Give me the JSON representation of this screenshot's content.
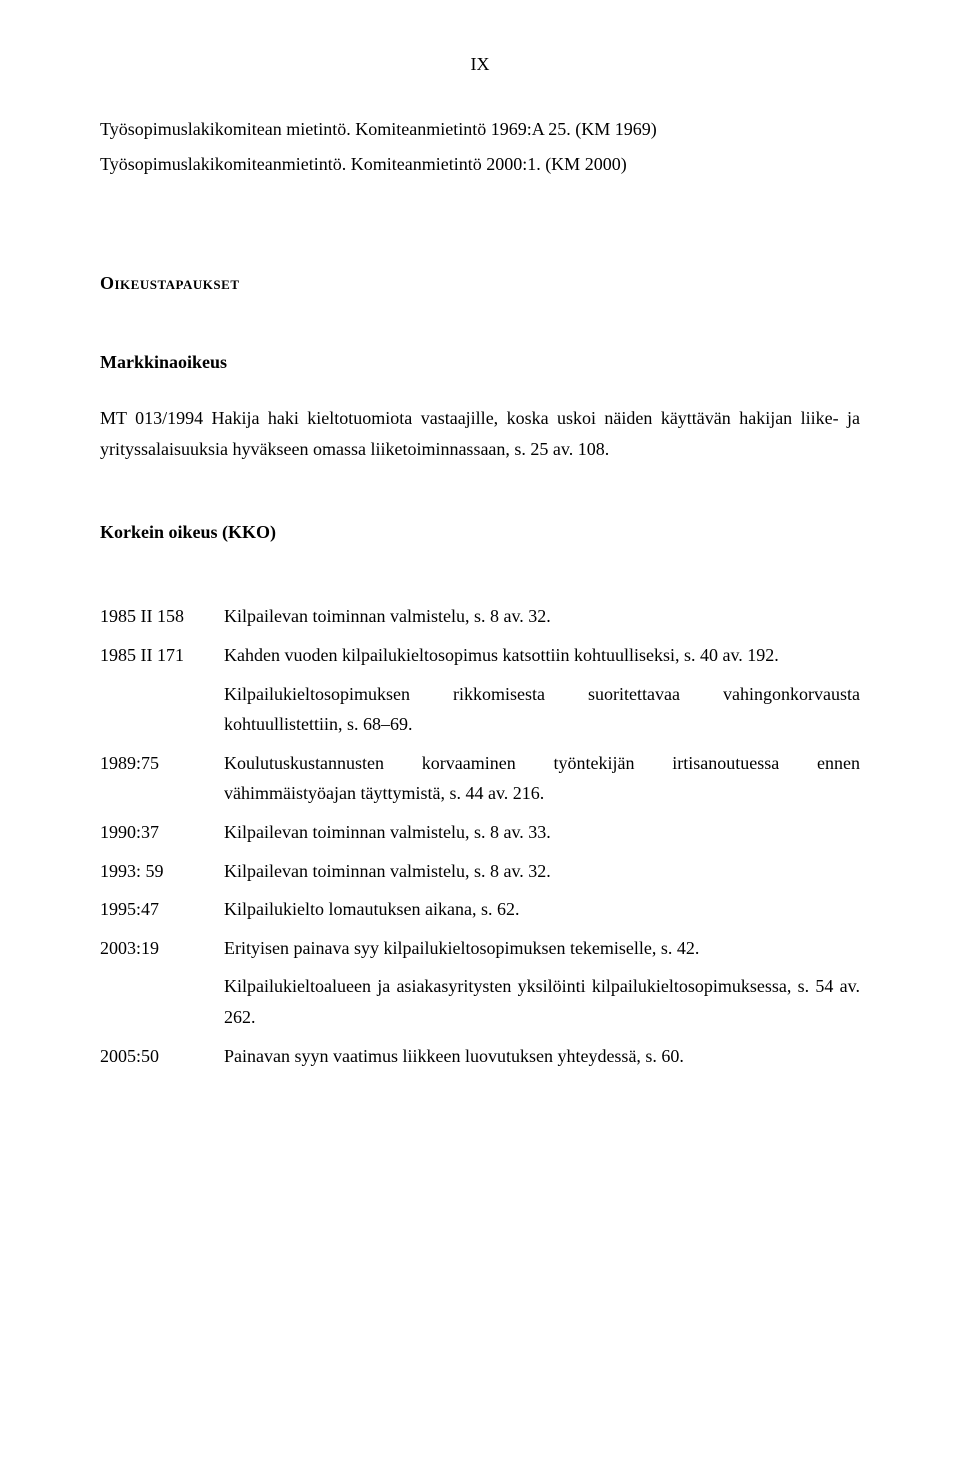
{
  "page_number": "IX",
  "intro": {
    "line1": "Työsopimuslakikomitean mietintö. Komiteanmietintö 1969:A 25. (KM 1969)",
    "line2": "Työsopimuslakikomiteanmietintö. Komiteanmietintö 2000:1.  (KM  2000)"
  },
  "cases_heading": "Oikeustapaukset",
  "market_court": {
    "title": "Markkinaoikeus",
    "case_label": "MT 013/1994",
    "case_text": " Hakija haki kieltotuomiota vastaajille, koska uskoi näiden käyttävän hakijan liike- ja yrityssalaisuuksia hyväkseen omassa liiketoiminnassaan, s. 25 av. 108."
  },
  "supreme_court": {
    "title": "Korkein oikeus (KKO)",
    "entries": [
      {
        "label": "1985 II 158",
        "text": "Kilpailevan toiminnan valmistelu, s. 8 av. 32."
      },
      {
        "label": "1985 II 171",
        "text": "Kahden vuoden kilpailukieltosopimus katsottiin kohtuulliseksi, s. 40 av. 192."
      },
      {
        "label": "",
        "text": "Kilpailukieltosopimuksen rikkomisesta suoritettavaa vahingonkorvausta kohtuullistettiin, s. 68–69."
      },
      {
        "label": "1989:75",
        "text": "Koulutuskustannusten korvaaminen työntekijän irtisanoutuessa ennen vähimmäistyöajan täyttymistä, s. 44 av. 216."
      },
      {
        "label": "1990:37",
        "text": "Kilpailevan toiminnan valmistelu, s. 8 av. 33."
      },
      {
        "label": "1993: 59",
        "text": "Kilpailevan toiminnan valmistelu, s. 8 av. 32."
      },
      {
        "label": "1995:47",
        "text": "Kilpailukielto lomautuksen aikana, s. 62."
      },
      {
        "label": "2003:19",
        "text": "Erityisen painava syy kilpailukieltosopimuksen tekemiselle, s. 42."
      },
      {
        "label": "",
        "text": "Kilpailukieltoalueen ja asiakasyritysten yksilöinti kilpailukieltosopimuksessa, s. 54 av. 262."
      },
      {
        "label": "2005:50",
        "text": "Painavan syyn vaatimus liikkeen luovutuksen yhteydessä, s. 60."
      }
    ]
  }
}
